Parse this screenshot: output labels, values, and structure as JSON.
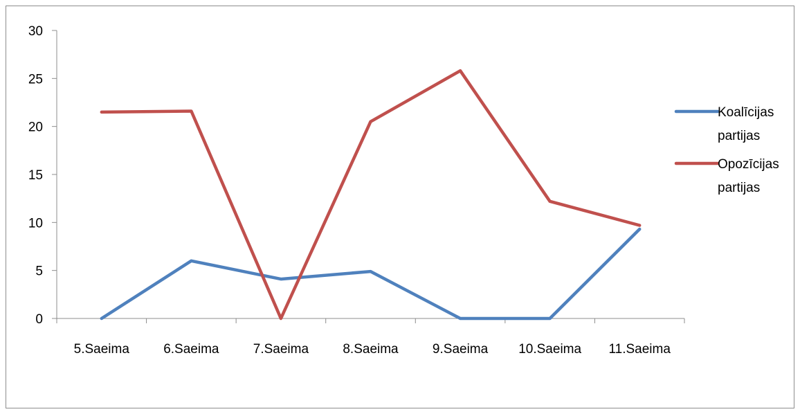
{
  "chart_data": {
    "type": "line",
    "title": "",
    "xlabel": "",
    "ylabel": "",
    "categories": [
      "5.Saeima",
      "6.Saeima",
      "7.Saeima",
      "8.Saeima",
      "9.Saeima",
      "10.Saeima",
      "11.Saeima"
    ],
    "ylim": [
      0,
      30
    ],
    "yticks": [
      0,
      5,
      10,
      15,
      20,
      25,
      30
    ],
    "grid": false,
    "legend_position": "right",
    "series": [
      {
        "name": "Koalīcijas partijas",
        "name_lines": [
          "Koalīcijas",
          "partijas"
        ],
        "color": "#4f81bd",
        "values": [
          0,
          6,
          4.1,
          4.9,
          0,
          0,
          9.3
        ]
      },
      {
        "name": "Opozīcijas partijas",
        "name_lines": [
          "Opozīcijas",
          "partijas"
        ],
        "color": "#c0504d",
        "values": [
          21.5,
          21.6,
          0,
          20.5,
          25.8,
          12.2,
          9.7
        ]
      }
    ]
  }
}
